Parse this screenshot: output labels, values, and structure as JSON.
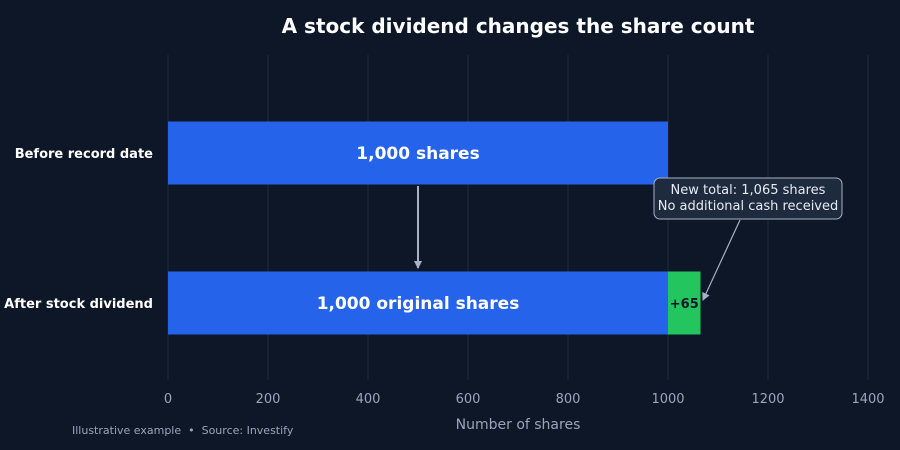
{
  "chart_data": {
    "type": "bar",
    "orientation": "horizontal",
    "stacked": true,
    "title": "A stock dividend changes the share count",
    "xlabel": "Number of shares",
    "ylabel": "",
    "xlim": [
      0,
      1400
    ],
    "x_ticks": [
      0,
      200,
      400,
      600,
      800,
      1000,
      1200,
      1400
    ],
    "grid": "vertical",
    "categories": [
      "Before record date",
      "After stock dividend"
    ],
    "series": [
      {
        "color": "#2563eb",
        "values": [
          1000,
          1000
        ],
        "labels": [
          "1,000 shares",
          "1,000 original shares"
        ]
      },
      {
        "color": "#22c55e",
        "values": [
          0,
          65
        ],
        "labels": [
          "",
          "+65"
        ]
      }
    ],
    "annotation": {
      "lines": [
        "New total: 1,065 shares",
        "No additional cash received"
      ]
    },
    "footnote": "Illustrative example  •  Source: Investify"
  }
}
